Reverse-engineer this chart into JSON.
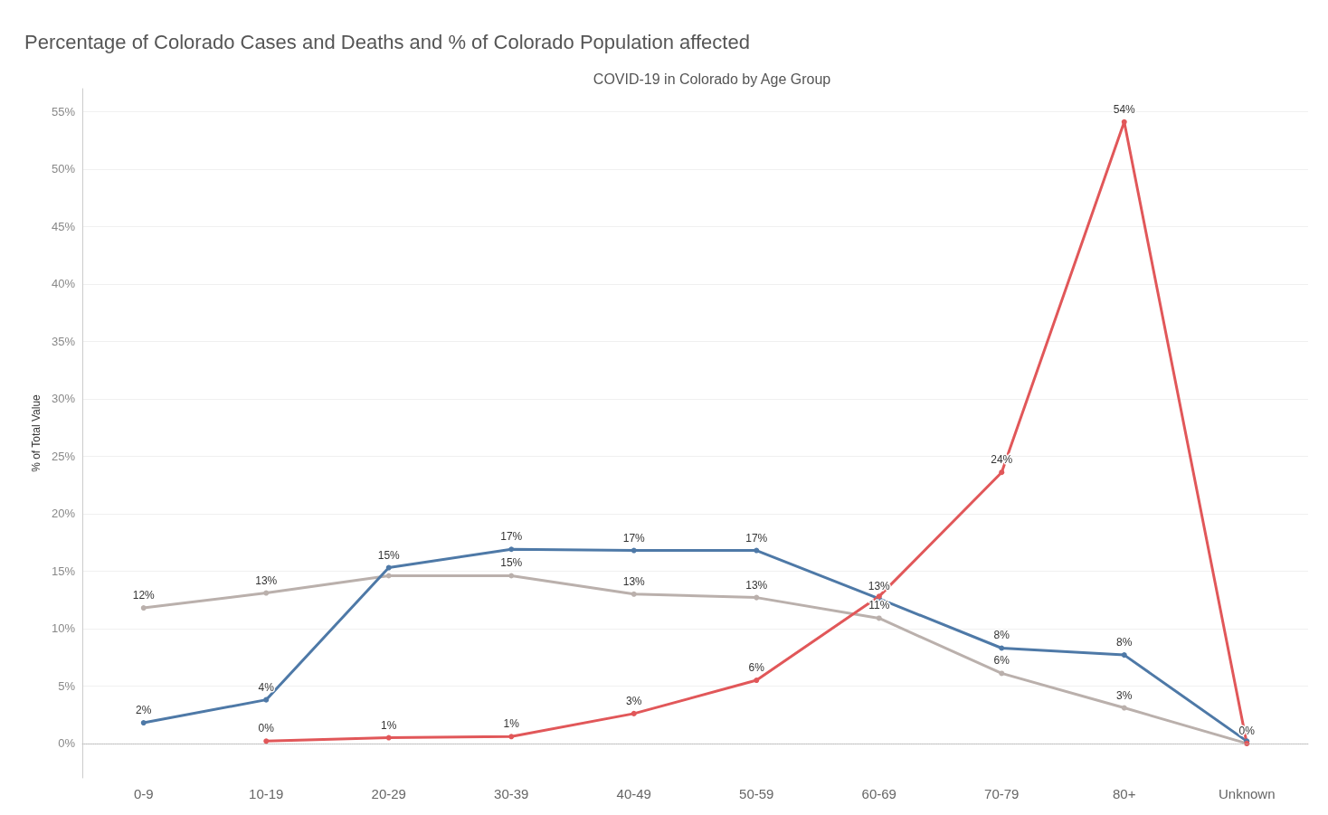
{
  "chart_data": {
    "type": "line",
    "title": "Percentage of Colorado Cases and Deaths and % of Colorado Population affected",
    "subtitle": "COVID-19 in Colorado by Age Group",
    "ylabel": "% of Total Value",
    "categories": [
      "0-9",
      "10-19",
      "20-29",
      "30-39",
      "40-49",
      "50-59",
      "60-69",
      "70-79",
      "80+",
      "Unknown"
    ],
    "series": [
      {
        "color": "#bab0ac",
        "values": [
          11.8,
          13.1,
          14.6,
          14.6,
          13.0,
          12.7,
          10.9,
          6.1,
          3.1,
          0
        ],
        "value_labels": [
          "12%",
          "13%",
          null,
          "15%",
          "13%",
          "13%",
          "11%",
          "6%",
          "3%",
          null
        ]
      },
      {
        "color": "#4e79a7",
        "values": [
          1.8,
          3.8,
          15.3,
          16.9,
          16.8,
          16.8,
          12.6,
          8.3,
          7.7,
          0.2
        ],
        "value_labels": [
          "2%",
          "4%",
          "15%",
          "17%",
          "17%",
          "17%",
          "13%",
          "8%",
          "8%",
          null
        ]
      },
      {
        "color": "#e15759",
        "values": [
          null,
          0.2,
          0.5,
          0.6,
          2.6,
          5.5,
          12.8,
          23.6,
          54.1,
          0
        ],
        "value_labels": [
          null,
          "0%",
          "1%",
          "1%",
          "3%",
          "6%",
          null,
          "24%",
          "54%",
          "0%"
        ]
      }
    ],
    "ylim": [
      -3,
      57
    ],
    "yticks": [
      {
        "value": 0,
        "label": "0%"
      },
      {
        "value": 5,
        "label": "5%"
      },
      {
        "value": 10,
        "label": "10%"
      },
      {
        "value": 15,
        "label": "15%"
      },
      {
        "value": 20,
        "label": "20%"
      },
      {
        "value": 25,
        "label": "25%"
      },
      {
        "value": 30,
        "label": "30%"
      },
      {
        "value": 35,
        "label": "35%"
      },
      {
        "value": 40,
        "label": "40%"
      },
      {
        "value": 45,
        "label": "45%"
      },
      {
        "value": 50,
        "label": "50%"
      },
      {
        "value": 55,
        "label": "55%"
      }
    ],
    "ref_lines": [
      {
        "axis": "y",
        "value": 0,
        "color": "#bbbbbb",
        "line_style": "dotted"
      }
    ],
    "grid": "y",
    "marker": "circle",
    "line_style": "solid"
  }
}
